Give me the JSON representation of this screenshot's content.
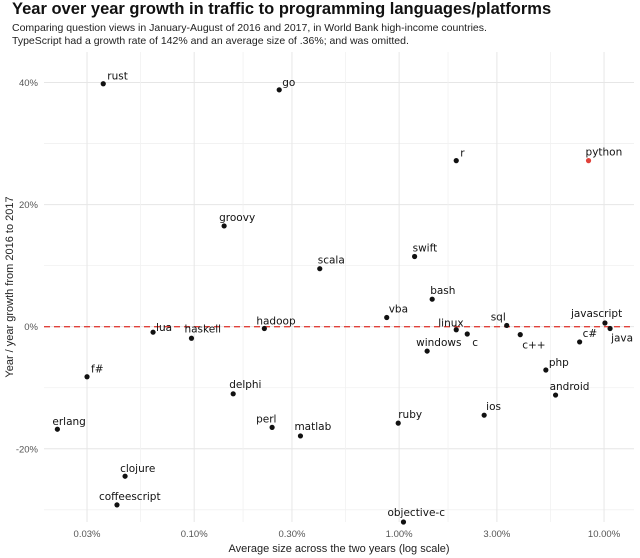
{
  "chart_data": {
    "type": "scatter",
    "title": "Year over year growth in traffic to programming languages/platforms",
    "subtitle": [
      "Comparing question views in January-August of 2016 and 2017, in World Bank high-income countries.",
      "TypeScript had a growth rate of 142% and an average size of .36%; and was omitted."
    ],
    "xlabel": "Average size across the two years (log scale)",
    "ylabel": "Year / year growth from 2016 to 2017",
    "x_scale": "log",
    "xlim": [
      0.0185,
      14.0
    ],
    "ylim": [
      -32,
      45
    ],
    "x_ticks": [
      0.03,
      0.1,
      0.3,
      1.0,
      3.0,
      10.0
    ],
    "x_tick_labels": [
      "0.03%",
      "0.10%",
      "0.30%",
      "1.00%",
      "3.00%",
      "10.00%"
    ],
    "y_ticks": [
      -20,
      0,
      20,
      40
    ],
    "y_tick_labels": [
      "-20%",
      "0%",
      "20%",
      "40%"
    ],
    "reference_line": {
      "y": 0,
      "style": "dashed",
      "color": "#e0413a"
    },
    "grid": true,
    "colors": {
      "point": "#111111",
      "highlight": "#e0413a",
      "grid": "#e6e6e6"
    },
    "points": [
      {
        "label": "rust",
        "x": 0.036,
        "y": 39.8
      },
      {
        "label": "go",
        "x": 0.26,
        "y": 38.8
      },
      {
        "label": "r",
        "x": 1.9,
        "y": 27.2
      },
      {
        "label": "python",
        "x": 8.4,
        "y": 27.2,
        "highlight": true
      },
      {
        "label": "groovy",
        "x": 0.14,
        "y": 16.5
      },
      {
        "label": "swift",
        "x": 1.19,
        "y": 11.5
      },
      {
        "label": "scala",
        "x": 0.41,
        "y": 9.5
      },
      {
        "label": "bash",
        "x": 1.45,
        "y": 4.5
      },
      {
        "label": "vba",
        "x": 0.87,
        "y": 1.5
      },
      {
        "label": "javascript",
        "x": 10.1,
        "y": 0.6
      },
      {
        "label": "sql",
        "x": 3.35,
        "y": 0.2
      },
      {
        "label": "lua",
        "x": 0.063,
        "y": -0.9
      },
      {
        "label": "hadoop",
        "x": 0.22,
        "y": -0.3
      },
      {
        "label": "linux",
        "x": 1.9,
        "y": -0.5
      },
      {
        "label": "java",
        "x": 10.7,
        "y": -0.3
      },
      {
        "label": "c",
        "x": 2.15,
        "y": -1.2
      },
      {
        "label": "c++",
        "x": 3.9,
        "y": -1.3
      },
      {
        "label": "c#",
        "x": 7.6,
        "y": -2.5
      },
      {
        "label": "haskell",
        "x": 0.097,
        "y": -1.9
      },
      {
        "label": "windows",
        "x": 1.37,
        "y": -4.0
      },
      {
        "label": "php",
        "x": 5.2,
        "y": -7.1
      },
      {
        "label": "f#",
        "x": 0.03,
        "y": -8.2
      },
      {
        "label": "delphi",
        "x": 0.155,
        "y": -11.0
      },
      {
        "label": "android",
        "x": 5.8,
        "y": -11.2
      },
      {
        "label": "ios",
        "x": 2.6,
        "y": -14.5
      },
      {
        "label": "ruby",
        "x": 0.99,
        "y": -15.8
      },
      {
        "label": "perl",
        "x": 0.24,
        "y": -16.5
      },
      {
        "label": "matlab",
        "x": 0.33,
        "y": -17.9
      },
      {
        "label": "erlang",
        "x": 0.0215,
        "y": -16.8
      },
      {
        "label": "clojure",
        "x": 0.046,
        "y": -24.5
      },
      {
        "label": "coffeescript",
        "x": 0.042,
        "y": -29.2
      },
      {
        "label": "objective-c",
        "x": 1.05,
        "y": -32.0
      }
    ]
  }
}
